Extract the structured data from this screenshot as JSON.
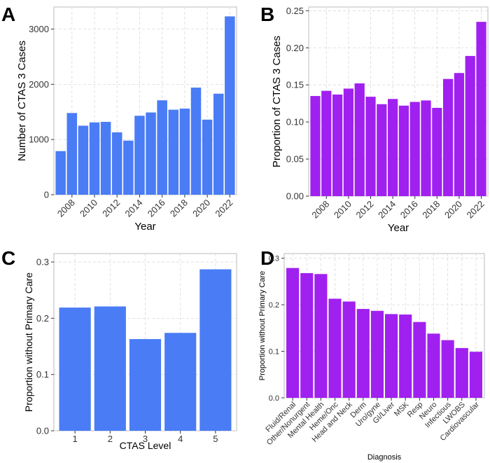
{
  "chart_data": [
    {
      "panel_label": "A",
      "type": "bar",
      "title": "",
      "xlabel": "Year",
      "ylabel": "Number of CTAS 3 Cases",
      "color": "#4a7cf6",
      "categories": [
        2007,
        2008,
        2009,
        2010,
        2011,
        2012,
        2013,
        2014,
        2015,
        2016,
        2017,
        2018,
        2019,
        2020,
        2021,
        2022
      ],
      "values": [
        790,
        1480,
        1250,
        1310,
        1320,
        1130,
        980,
        1430,
        1490,
        1710,
        1540,
        1560,
        1940,
        1360,
        1830,
        3230
      ],
      "ylim": [
        0,
        3400
      ],
      "yticks": [
        0,
        1000,
        2000,
        3000
      ],
      "ytick_labels": [
        "0",
        "1000",
        "2000",
        "3000"
      ],
      "xticks": [
        2008,
        2010,
        2012,
        2014,
        2016,
        2018,
        2020,
        2022
      ],
      "xtick_labels": [
        "2008",
        "2010",
        "2012",
        "2014",
        "2016",
        "2018",
        "2020",
        "2022"
      ],
      "xtick_rotation": "45deg",
      "grid": true
    },
    {
      "panel_label": "B",
      "type": "bar",
      "title": "",
      "xlabel": "Year",
      "ylabel": "Proportion of CTAS 3 Cases",
      "color": "#a020f0",
      "categories": [
        2007,
        2008,
        2009,
        2010,
        2011,
        2012,
        2013,
        2014,
        2015,
        2016,
        2017,
        2018,
        2019,
        2020,
        2021,
        2022
      ],
      "values": [
        0.135,
        0.142,
        0.137,
        0.145,
        0.152,
        0.134,
        0.124,
        0.131,
        0.122,
        0.127,
        0.129,
        0.119,
        0.158,
        0.166,
        0.189,
        0.235
      ],
      "ylim": [
        0,
        0.255
      ],
      "yticks": [
        0,
        0.05,
        0.1,
        0.15,
        0.2,
        0.25
      ],
      "ytick_labels": [
        "0.00",
        "0.05",
        "0.10",
        "0.15",
        "0.20",
        "0.25"
      ],
      "xticks": [
        2008,
        2010,
        2012,
        2014,
        2016,
        2018,
        2020,
        2022
      ],
      "xtick_labels": [
        "2008",
        "2010",
        "2012",
        "2014",
        "2016",
        "2018",
        "2020",
        "2022"
      ],
      "xtick_rotation": "45deg",
      "grid": true
    },
    {
      "panel_label": "C",
      "type": "bar",
      "title": "",
      "xlabel": "CTAS Level",
      "ylabel": "Proportion without Primary Care",
      "color": "#4a7cf6",
      "categories": [
        "1",
        "2",
        "3",
        "4",
        "5"
      ],
      "values": [
        0.219,
        0.221,
        0.163,
        0.174,
        0.287
      ],
      "ylim": [
        0,
        0.315
      ],
      "yticks": [
        0,
        0.1,
        0.2,
        0.3
      ],
      "ytick_labels": [
        "0.0",
        "0.1",
        "0.2",
        "0.3"
      ],
      "xtick_labels": [
        "1",
        "2",
        "3",
        "4",
        "5"
      ],
      "xtick_rotation": "0deg",
      "grid": true
    },
    {
      "panel_label": "D",
      "type": "bar",
      "title": "",
      "xlabel": "Diagnosis",
      "ylabel": "Proportion without Primary Care",
      "color": "#a020f0",
      "categories": [
        "Fluid/Renal",
        "Other/Nonurgent",
        "Mental Health",
        "Heme/Onc",
        "Head and Neck",
        "Derm",
        "Uro/gyne",
        "GI/Liver",
        "MSK",
        "Resp",
        "Neuro",
        "Infectious",
        "LWOBS",
        "Cardiovascular"
      ],
      "values": [
        0.279,
        0.268,
        0.266,
        0.213,
        0.207,
        0.191,
        0.187,
        0.18,
        0.179,
        0.163,
        0.138,
        0.124,
        0.107,
        0.099
      ],
      "ylim": [
        0,
        0.31
      ],
      "yticks": [
        0,
        0.1,
        0.2,
        0.3
      ],
      "ytick_labels": [
        "0.0",
        "0.1",
        "0.2",
        "0.3"
      ],
      "xtick_labels": [
        "Fluid/Renal",
        "Other/Nonurgent",
        "Mental Health",
        "Heme/Onc",
        "Head and Neck",
        "Derm",
        "Uro/gyne",
        "GI/Liver",
        "MSK",
        "Resp",
        "Neuro",
        "Infectious",
        "LWOBS",
        "Cardiovascular"
      ],
      "xtick_rotation": "45deg",
      "grid": true
    }
  ]
}
